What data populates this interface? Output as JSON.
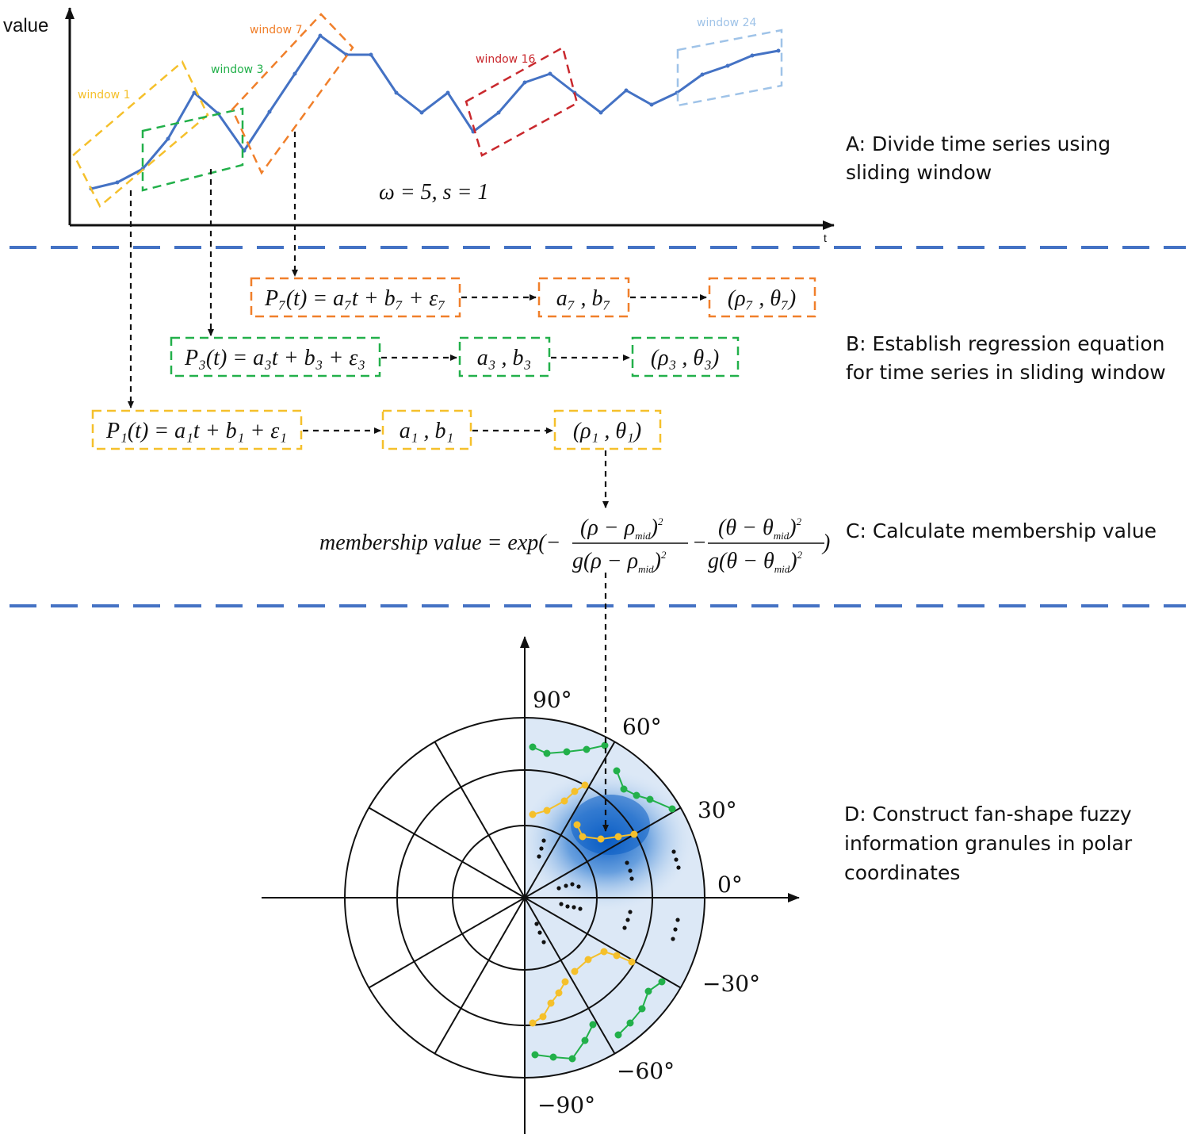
{
  "axis": {
    "y_label": "value",
    "x_label": "t"
  },
  "params_label": "ω = 5, s = 1",
  "windows": [
    {
      "label": "window 1",
      "color": "#f5c02b"
    },
    {
      "label": "window 3",
      "color": "#22b04a"
    },
    {
      "label": "window 7",
      "color": "#f07f2a"
    },
    {
      "label": "window 16",
      "color": "#c9282d"
    },
    {
      "label": "window 24",
      "color": "#9fc3e8"
    }
  ],
  "series_color": "#4472c4",
  "steps": {
    "a": "A: Divide time series using sliding window",
    "a_line1": "A: Divide time series using",
    "a_line2": "sliding window",
    "b_line1": "B: Establish regression equation",
    "b_line2": "for time series in sliding window",
    "c": "C: Calculate membership value",
    "d_line1": "D: Construct fan-shape fuzzy",
    "d_line2": "information granules in polar",
    "d_line3": "coordinates"
  },
  "equations": {
    "row7": {
      "model": "P₇(t) = a₇t + b₇ + ε₇",
      "coef": "a₇ , b₇",
      "polar": "(ρ₇ , θ₇)"
    },
    "row3": {
      "model": "P₃(t) = a₃t + b₃ + ε₃",
      "coef": "a₃ , b₃",
      "polar": "(ρ₃ , θ₃)"
    },
    "row1": {
      "model": "P₁(t) = a₁t + b₁ + ε₁",
      "coef": "a₁ , b₁",
      "polar": "(ρ₁ , θ₁)"
    },
    "membership": {
      "lhs": "membership value = exp(−",
      "num1": "(ρ − ρ",
      "den1": "g(ρ − ρ",
      "num2": "(θ − θ",
      "den2": "g(θ − θ",
      "sub": "mid",
      "close": ")"
    }
  },
  "polar": {
    "angles": [
      "90°",
      "60°",
      "30°",
      "0°",
      "−30°",
      "−60°",
      "−90°"
    ]
  },
  "divider_color": "#4472c4"
}
